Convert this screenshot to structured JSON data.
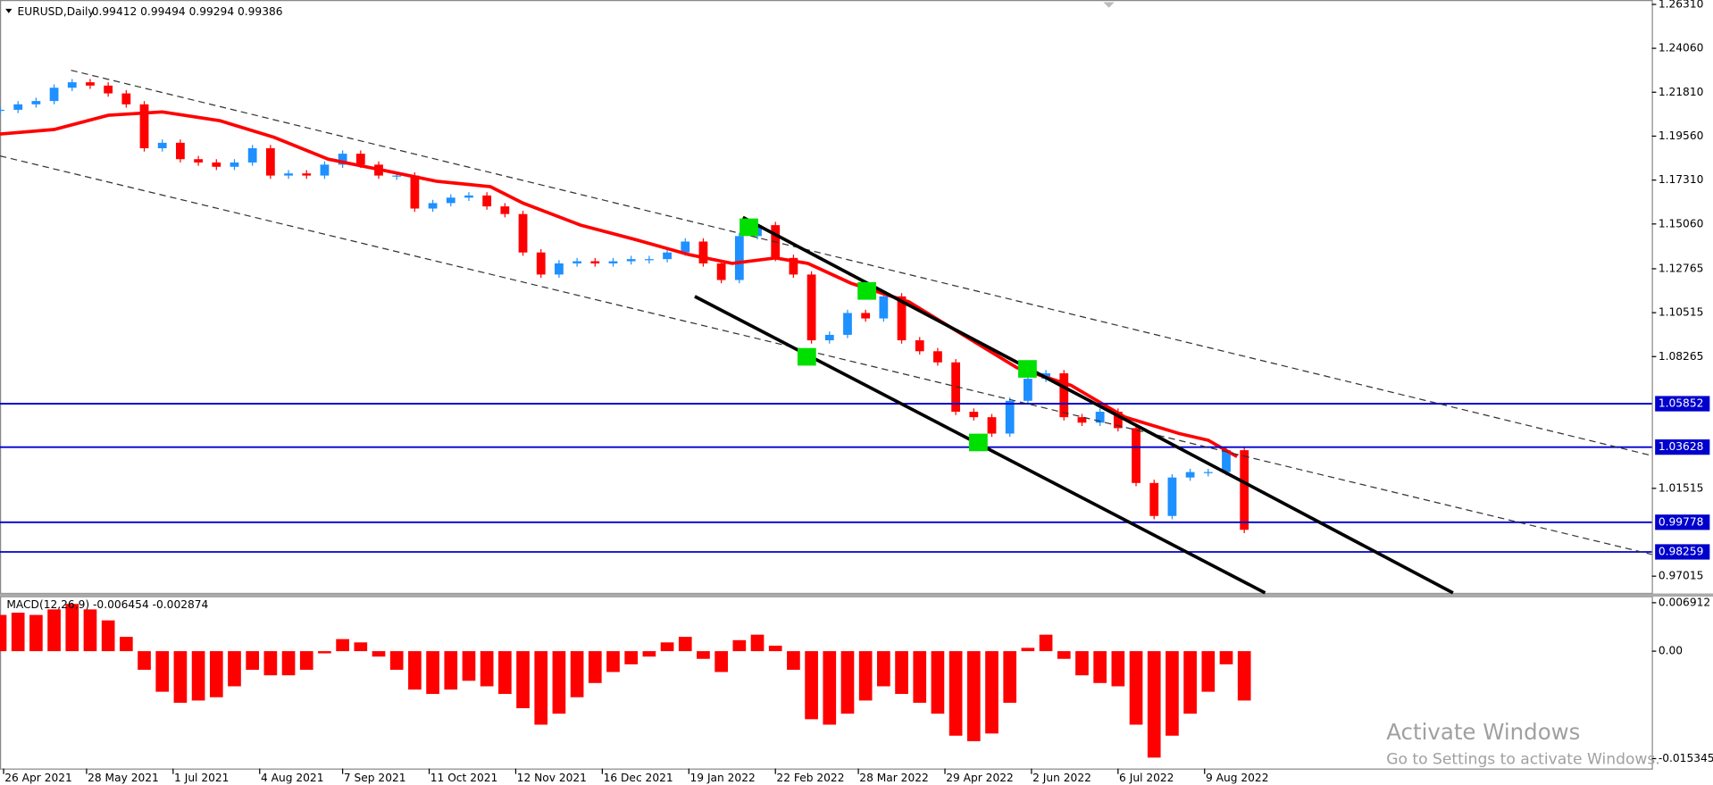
{
  "header": {
    "symbol": "EURUSD,Daily",
    "ohlc": "0.99412 0.99494 0.99294 0.99386"
  },
  "watermark": {
    "title": "Activate Windows",
    "subtitle": "Go to Settings to activate Windows."
  },
  "chart_data": [
    {
      "type": "candlestick",
      "up_color": "#1e90ff",
      "down_color": "#ff0000",
      "x": [
        0,
        5,
        10,
        15,
        20,
        25,
        30,
        35,
        40,
        45,
        50,
        55,
        60,
        65,
        70,
        75,
        80,
        85,
        90,
        95,
        100,
        105,
        110,
        115,
        120,
        125,
        130,
        135,
        140,
        145,
        150,
        155,
        160,
        165,
        170,
        175,
        180,
        185,
        190,
        195,
        200,
        205,
        210,
        215,
        220,
        225,
        230,
        235,
        240,
        245,
        250,
        255,
        260,
        265,
        270,
        275,
        280,
        285,
        290,
        295,
        300,
        305,
        310,
        315,
        320,
        325,
        330,
        335,
        340,
        345
      ],
      "close": [
        1.2091,
        1.2119,
        1.2136,
        1.2204,
        1.2232,
        1.2215,
        1.2175,
        1.2119,
        1.1894,
        1.1922,
        1.1838,
        1.1821,
        1.1799,
        1.1821,
        1.1894,
        1.1754,
        1.1765,
        1.1754,
        1.181,
        1.1866,
        1.181,
        1.1754,
        1.1754,
        1.1585,
        1.1613,
        1.1641,
        1.1652,
        1.1596,
        1.1557,
        1.136,
        1.1247,
        1.1304,
        1.1315,
        1.1304,
        1.1315,
        1.1326,
        1.1326,
        1.136,
        1.1416,
        1.1304,
        1.1219,
        1.1444,
        1.15,
        1.1332,
        1.1247,
        1.091,
        1.0938,
        1.105,
        1.1022,
        1.1135,
        1.091,
        1.0854,
        1.0797,
        1.0544,
        1.0516,
        1.0432,
        1.06,
        1.0713,
        1.0741,
        1.0516,
        1.0488,
        1.0544,
        1.046,
        1.0179,
        1.001,
        1.0207,
        1.0235,
        1.0235,
        1.0347,
        0.9939
      ],
      "ma": {
        "color": "#ff0000",
        "x": [
          0,
          15,
          30,
          45,
          61,
          76,
          91,
          106,
          121,
          136,
          145,
          161,
          176,
          191,
          203,
          215,
          224,
          236,
          252,
          267,
          282,
          297,
          312,
          327,
          335,
          343
        ],
        "values": [
          1.1967,
          1.199,
          1.2063,
          1.208,
          1.2035,
          1.195,
          1.1838,
          1.1782,
          1.1725,
          1.1697,
          1.1613,
          1.15,
          1.1427,
          1.1349,
          1.1304,
          1.1332,
          1.1304,
          1.1202,
          1.1107,
          1.0938,
          1.0769,
          1.0679,
          1.0516,
          1.0432,
          1.0398,
          1.0314
        ]
      },
      "levels": [
        1.05852,
        1.03628,
        0.99778,
        0.98259
      ],
      "level_color": "#0000cd",
      "xlim": [
        0,
        458
      ],
      "ylim": [
        0.9616,
        1.26535
      ],
      "yticks": [
        {
          "value": 1.2631,
          "label": "1.26310"
        },
        {
          "value": 1.2406,
          "label": "1.24060"
        },
        {
          "value": 1.2181,
          "label": "1.21810"
        },
        {
          "value": 1.1956,
          "label": "1.19560"
        },
        {
          "value": 1.1731,
          "label": "1.17310"
        },
        {
          "value": 1.1506,
          "label": "1.15060"
        },
        1.12765,
        1.10515,
        1.08265,
        1.01515,
        0.97015
      ],
      "xticks": [
        {
          "value": 1,
          "label": "26 Apr 2021"
        },
        {
          "value": 24,
          "label": "28 May 2021"
        },
        {
          "value": 48,
          "label": "1 Jul 2021"
        },
        {
          "value": 72,
          "label": "4 Aug 2021"
        },
        {
          "value": 95,
          "label": "7 Sep 2021"
        },
        {
          "value": 119,
          "label": "11 Oct 2021"
        },
        {
          "value": 143,
          "label": "12 Nov 2021"
        },
        {
          "value": 167,
          "label": "16 Dec 2021"
        },
        {
          "value": 191,
          "label": "19 Jan 2022"
        },
        {
          "value": 215,
          "label": "22 Feb 2022"
        },
        {
          "value": 238,
          "label": "28 Mar 2022"
        },
        {
          "value": 262,
          "label": "29 Apr 2022"
        },
        {
          "value": 286,
          "label": "2 Jun 2022"
        },
        {
          "value": 310,
          "label": "6 Jul 2022"
        },
        {
          "value": 334,
          "label": "9 Aug 2022"
        }
      ]
    },
    {
      "type": "bar",
      "title": "MACD(12,26,9) -0.006454 -0.002874",
      "color": "#ff0000",
      "x": [
        0,
        5,
        10,
        15,
        20,
        25,
        30,
        35,
        40,
        45,
        50,
        55,
        60,
        65,
        70,
        75,
        80,
        85,
        90,
        95,
        100,
        105,
        110,
        115,
        120,
        125,
        130,
        135,
        140,
        145,
        150,
        155,
        160,
        165,
        170,
        175,
        180,
        185,
        190,
        195,
        200,
        205,
        210,
        215,
        220,
        225,
        230,
        235,
        240,
        245,
        250,
        255,
        260,
        265,
        270,
        275,
        280,
        285,
        290,
        295,
        300,
        305,
        310,
        315,
        320,
        325,
        330,
        335,
        340,
        345
      ],
      "values": [
        0.00517,
        0.00549,
        0.00517,
        0.00596,
        0.00674,
        0.00596,
        0.00439,
        0.00204,
        -0.00266,
        -0.0058,
        -0.00737,
        -0.00705,
        -0.00658,
        -0.00502,
        -0.00266,
        -0.00345,
        -0.00345,
        -0.00266,
        -0.00031,
        0.00172,
        0.00125,
        -0.00078,
        -0.00266,
        -0.00549,
        -0.00611,
        -0.00549,
        -0.00423,
        -0.00502,
        -0.00611,
        -0.00815,
        -0.0105,
        -0.00893,
        -0.00658,
        -0.00455,
        -0.00298,
        -0.00188,
        -0.00078,
        0.00125,
        0.00204,
        -0.0011,
        -0.00298,
        0.00157,
        0.00235,
        0.00078,
        -0.00266,
        -0.00972,
        -0.0105,
        -0.00893,
        -0.00705,
        -0.00502,
        -0.00611,
        -0.00737,
        -0.00893,
        -0.01207,
        -0.01285,
        -0.01176,
        -0.00737,
        0.00047,
        0.00235,
        -0.0011,
        -0.00345,
        -0.00455,
        -0.00502,
        -0.0105,
        -0.0152,
        -0.01207,
        -0.00893,
        -0.0058,
        -0.00188,
        -0.00705
      ],
      "xlim": [
        0,
        458
      ],
      "ylim": [
        -0.01676,
        0.00785
      ],
      "yticks": [
        0.006912,
        {
          "value": 0,
          "label": "0.00"
        },
        -0.015345
      ]
    }
  ]
}
